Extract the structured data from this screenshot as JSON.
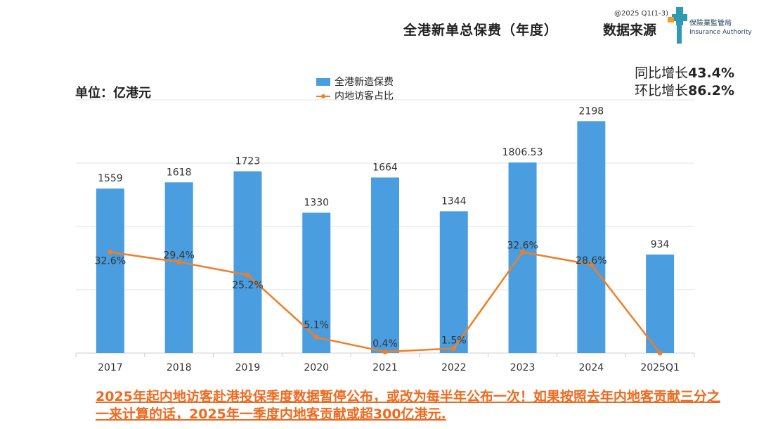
{
  "header": {
    "title": "全港新单总保费（年度）",
    "source_label": "数据来源",
    "copyright": "@2025 Q1(1-3)",
    "logo_text_cn": "保險業監管局",
    "logo_text_en": "Insurance Authority"
  },
  "unit_label": "单位：亿港元",
  "growth": {
    "yoy_label": "同比增长",
    "yoy_value": "43.4%",
    "qoq_label": "环比增长",
    "qoq_value": "86.2%"
  },
  "colors": {
    "bar": "#4a9ee0",
    "line": "#f07e26",
    "note": "#ee6a1f",
    "logo_teal": "#2f9bb3",
    "logo_orange": "#f39a2b"
  },
  "chart_data": {
    "type": "bar",
    "categories": [
      "2017",
      "2018",
      "2019",
      "2020",
      "2021",
      "2022",
      "2023",
      "2024",
      "2025Q1"
    ],
    "series": [
      {
        "name": "全港新造保费",
        "type": "bar",
        "values": [
          1559,
          1618,
          1723,
          1330,
          1664,
          1344,
          1806.53,
          2198,
          934
        ],
        "labels": [
          "1559",
          "1618",
          "1723",
          "1330",
          "1664",
          "1344",
          "1806.53",
          "2198",
          "934"
        ]
      },
      {
        "name": "内地访客占比",
        "type": "line",
        "unit": "%",
        "values": [
          32.6,
          29.4,
          25.2,
          5.1,
          0.4,
          1.5,
          32.6,
          28.6,
          0
        ],
        "labels": [
          "32.6%",
          "29.4%",
          "25.2%",
          "5.1%",
          "0.4%",
          "1.5%",
          "32.6%",
          "28.6%",
          ""
        ]
      }
    ],
    "ylim": [
      0,
      2400
    ],
    "y2lim": [
      0,
      100
    ],
    "legend": [
      "全港新造保费",
      "内地访客占比"
    ],
    "grid": true
  },
  "note": "2025年起内地访客赴港投保季度数据暂停公布，或改为每半年公布一次！如果按照去年内地客贡献三分之一来计算的话，2025年一季度内地客贡献或超300亿港元."
}
